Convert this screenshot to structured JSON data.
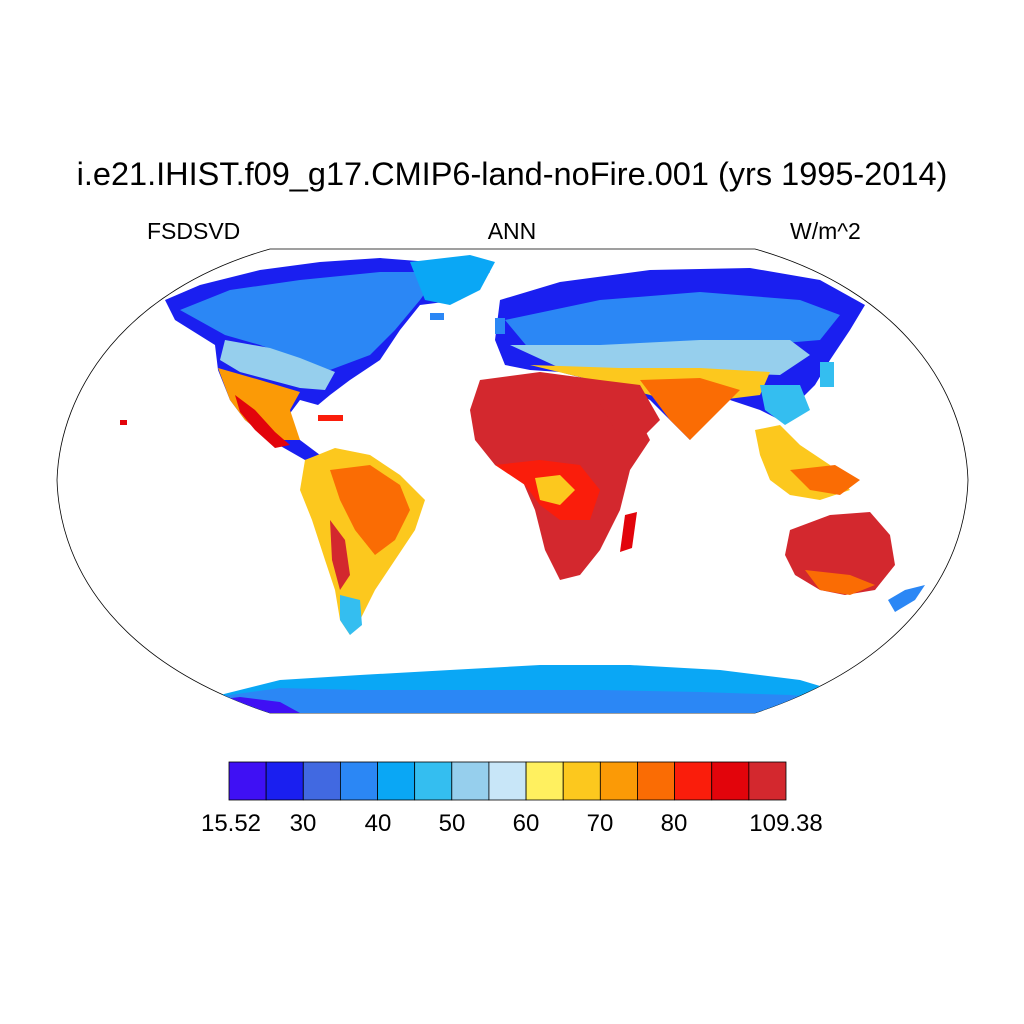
{
  "title": "i.e21.IHIST.f09_g17.CMIP6-land-noFire.001 (yrs 1995-2014)",
  "subtitle": {
    "left": "FSDSVD",
    "center": "ANN",
    "right": "W/m^2"
  },
  "map": {
    "projection": "Robinson",
    "domain": "global land",
    "variable": "FSDSVD"
  },
  "colorbar": {
    "min_label": "15.52",
    "max_label": "109.38",
    "tick_labels": [
      "15.52",
      "30",
      "40",
      "50",
      "60",
      "70",
      "80",
      "109.38"
    ],
    "colors": [
      "#3f10f4",
      "#1a1ff0",
      "#4169e1",
      "#2b87f5",
      "#0aa7f5",
      "#34bef0",
      "#96cfed",
      "#c8e6f8",
      "#fff05f",
      "#fcc81e",
      "#fb9a06",
      "#fa6c04",
      "#fa1d0b",
      "#e2040b",
      "#d3282e"
    ]
  }
}
